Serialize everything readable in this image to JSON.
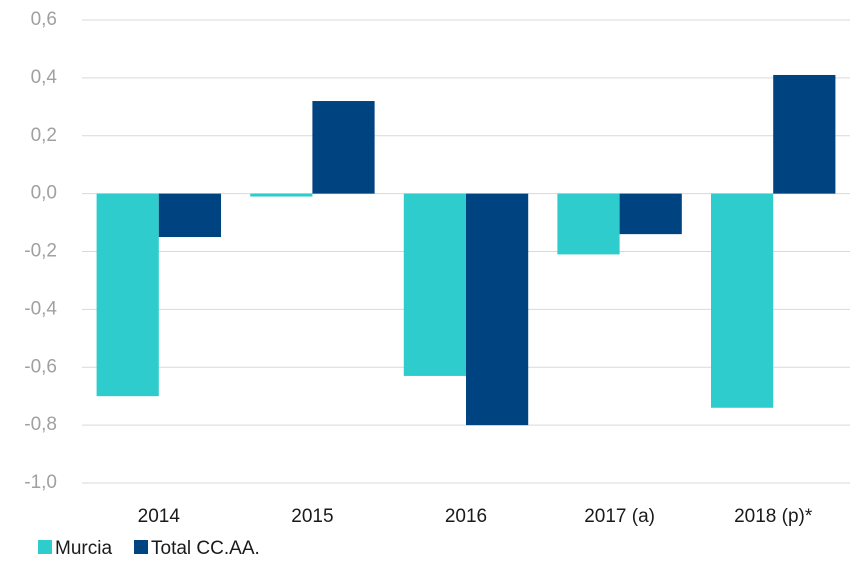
{
  "chart_data": {
    "type": "bar",
    "categories": [
      "2014",
      "2015",
      "2016",
      "2017 (a)",
      "2018 (p)*"
    ],
    "series": [
      {
        "name": "Murcia",
        "color": "#2ecccc",
        "values": [
          -0.7,
          -0.01,
          -0.63,
          -0.21,
          -0.74
        ]
      },
      {
        "name": "Total CC.AA.",
        "color": "#004381",
        "values": [
          -0.15,
          0.32,
          -0.8,
          -0.14,
          0.41
        ]
      }
    ],
    "ylim": [
      -1.0,
      0.6
    ],
    "yticks": [
      {
        "value": -1.0,
        "label": "-1,0"
      },
      {
        "value": -0.8,
        "label": "-0,8"
      },
      {
        "value": -0.6,
        "label": "-0,6"
      },
      {
        "value": -0.4,
        "label": "-0,4"
      },
      {
        "value": -0.2,
        "label": "-0,2"
      },
      {
        "value": 0,
        "label": "0,0"
      },
      {
        "value": 0.2,
        "label": "0,2"
      },
      {
        "value": 0.4,
        "label": "0,4"
      },
      {
        "value": 0.6,
        "label": "0,6"
      }
    ],
    "grid": true,
    "legend": "bottom-left"
  }
}
